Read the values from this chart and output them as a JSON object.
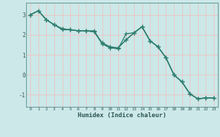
{
  "x": [
    0,
    1,
    2,
    3,
    4,
    5,
    6,
    7,
    8,
    9,
    10,
    11,
    12,
    13,
    14,
    15,
    16,
    17,
    18,
    19,
    20,
    21,
    22,
    23
  ],
  "line1": [
    3.0,
    3.2,
    2.75,
    2.5,
    2.25,
    2.25,
    2.2,
    2.2,
    2.2,
    1.55,
    1.35,
    1.3,
    2.05,
    2.1,
    2.4,
    1.7,
    1.4,
    0.85,
    0.0,
    -0.35,
    -0.95,
    -1.2,
    -1.15,
    -1.15
  ],
  "line2": [
    3.0,
    3.2,
    2.75,
    2.5,
    2.3,
    2.25,
    2.2,
    2.2,
    2.15,
    1.55,
    1.35,
    1.35,
    1.75,
    2.1,
    2.4,
    1.7,
    1.4,
    0.85,
    0.0,
    -0.35,
    -0.95,
    -1.2,
    -1.15,
    -1.15
  ],
  "line3": [
    3.0,
    3.2,
    2.75,
    2.5,
    2.3,
    2.25,
    2.2,
    2.2,
    2.15,
    1.6,
    1.4,
    1.35,
    1.75,
    2.1,
    2.4,
    1.7,
    1.4,
    0.85,
    0.0,
    -0.35,
    -0.95,
    -1.2,
    -1.15,
    -1.15
  ],
  "line_color": "#2e7d6e",
  "bg_color": "#cce8e8",
  "grid_color": "#f0c0c0",
  "xlabel": "Humidex (Indice chaleur)",
  "ylim": [
    -1.6,
    3.6
  ],
  "xlim": [
    -0.5,
    23.5
  ],
  "yticks": [
    -1,
    0,
    1,
    2,
    3
  ],
  "xticks": [
    0,
    1,
    2,
    3,
    4,
    5,
    6,
    7,
    8,
    9,
    10,
    11,
    12,
    13,
    14,
    15,
    16,
    17,
    18,
    19,
    20,
    21,
    22,
    23
  ],
  "marker": "+",
  "markersize": 4,
  "linewidth": 1.0
}
